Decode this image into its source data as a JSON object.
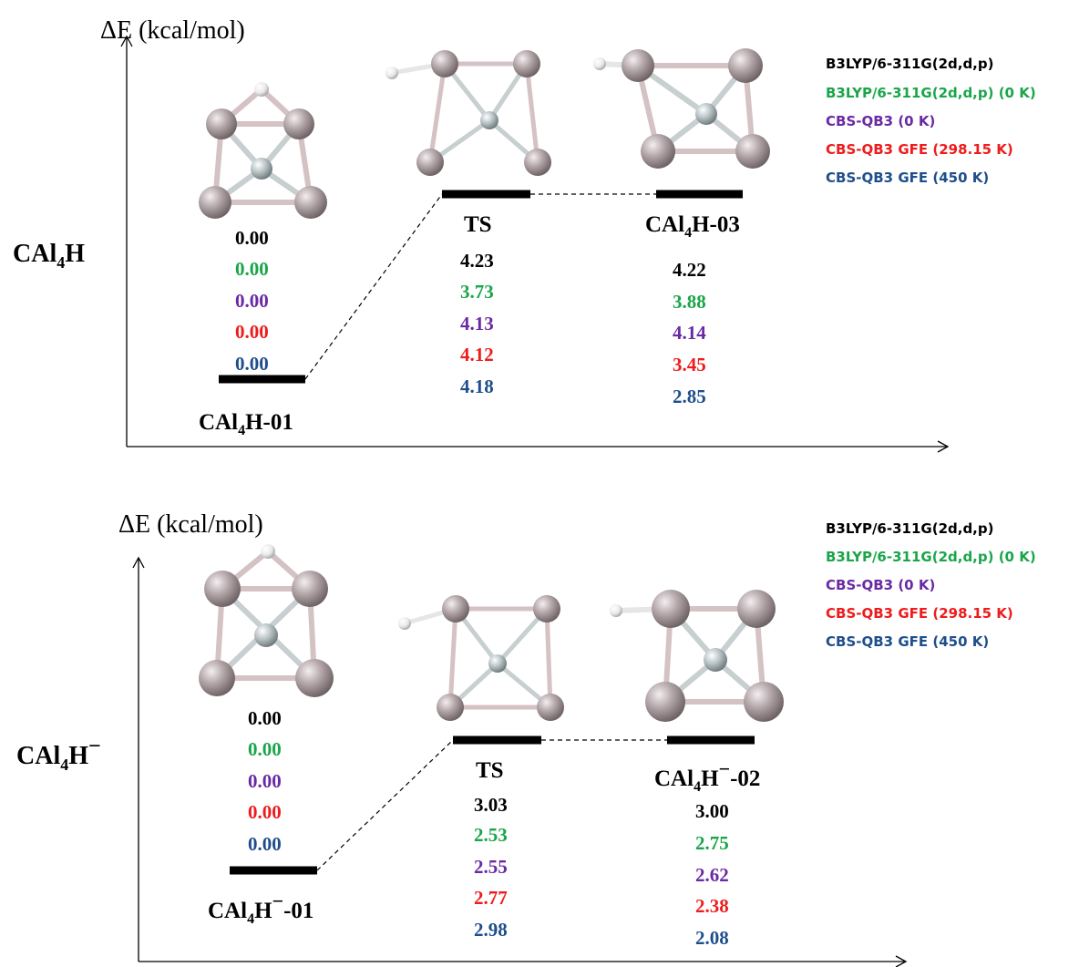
{
  "colors": {
    "b3lyp": "#000000",
    "b3lyp_0k": "#1aa54a",
    "cbs_0k": "#6a2aa3",
    "cbs_gfe_298": "#ee1c1c",
    "cbs_gfe_450": "#1f4e8c",
    "atom_al": "#b3a6a9",
    "atom_c": "#bcc4c6",
    "atom_h": "#f0f0f0",
    "bond": "#d9c6c8"
  },
  "panels": [
    {
      "axis_label": "ΔE (kcal/mol)",
      "species_main": "CAl",
      "species_sub": "4",
      "species_rest": "H",
      "species_sup": "",
      "legend": [
        "B3LYP/6-311G(2d,d,p)",
        "B3LYP/6-311G(2d,d,p) (0 K)",
        "CBS-QB3    (0  K)",
        "CBS-QB3 GFE  (298.15 K)",
        "CBS-QB3 GFE  (450 K)"
      ],
      "states": [
        {
          "label_main": "CAl",
          "label_sub": "4",
          "label_rest": "H",
          "label_sup": "",
          "label_tail": "-01",
          "values": [
            "0.00",
            "0.00",
            "0.00",
            "0.00",
            "0.00"
          ]
        },
        {
          "label_main": "TS",
          "label_sub": "",
          "label_rest": "",
          "label_sup": "",
          "label_tail": "",
          "values": [
            "4.23",
            "3.73",
            "4.13",
            "4.12",
            "4.18"
          ]
        },
        {
          "label_main": "CAl",
          "label_sub": "4",
          "label_rest": "H",
          "label_sup": "",
          "label_tail": "-03",
          "values": [
            "4.22",
            "3.88",
            "4.14",
            "3.45",
            "2.85"
          ]
        }
      ]
    },
    {
      "axis_label": "ΔE (kcal/mol)",
      "species_main": "CAl",
      "species_sub": "4",
      "species_rest": "H",
      "species_sup": "−",
      "legend": [
        "B3LYP/6-311G(2d,d,p)",
        "B3LYP/6-311G(2d,d,p) (0 K)",
        "CBS-QB3    (0  K)",
        "CBS-QB3 GFE  (298.15 K)",
        "CBS-QB3 GFE  (450 K)"
      ],
      "states": [
        {
          "label_main": "CAl",
          "label_sub": "4",
          "label_rest": "H",
          "label_sup": "−",
          "label_tail": "-01",
          "values": [
            "0.00",
            "0.00",
            "0.00",
            "0.00",
            "0.00"
          ]
        },
        {
          "label_main": "TS",
          "label_sub": "",
          "label_rest": "",
          "label_sup": "",
          "label_tail": "",
          "values": [
            "3.03",
            "2.53",
            "2.55",
            "2.77",
            "2.98"
          ]
        },
        {
          "label_main": "CAl",
          "label_sub": "4",
          "label_rest": "H",
          "label_sup": "−",
          "label_tail": "-02",
          "values": [
            "3.00",
            "2.75",
            "2.62",
            "2.38",
            "2.08"
          ]
        }
      ]
    }
  ]
}
